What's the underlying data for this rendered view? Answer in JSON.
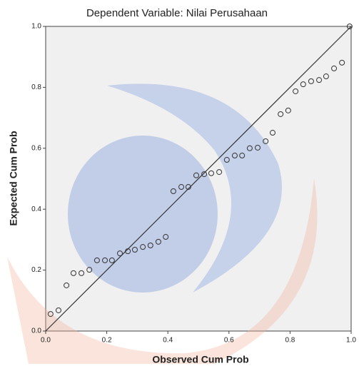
{
  "chart_data": {
    "type": "scatter",
    "title": "Dependent Variable: Nilai Perusahaan",
    "x_label": "Observed Cum Prob",
    "y_label": "Expected Cum Prob",
    "xlim": [
      0,
      1
    ],
    "ylim": [
      0,
      1
    ],
    "xticks": [
      {
        "value": 0,
        "label": "0.0"
      },
      0.2,
      0.4,
      0.6,
      0.8,
      {
        "value": 1,
        "label": "1.0"
      }
    ],
    "yticks": [
      {
        "value": 0,
        "label": "0.0"
      },
      0.2,
      0.4,
      0.6,
      0.8,
      {
        "value": 1,
        "label": "1.0"
      }
    ],
    "color": "#333333",
    "x": [
      0.016,
      0.042,
      0.068,
      0.091,
      0.117,
      0.143,
      0.168,
      0.194,
      0.217,
      0.243,
      0.269,
      0.292,
      0.318,
      0.343,
      0.369,
      0.393,
      0.418,
      0.444,
      0.467,
      0.493,
      0.519,
      0.542,
      0.568,
      0.593,
      0.619,
      0.643,
      0.668,
      0.694,
      0.72,
      0.743,
      0.769,
      0.794,
      0.818,
      0.843,
      0.869,
      0.895,
      0.918,
      0.944,
      0.97,
      0.995
    ],
    "values": [
      0.056,
      0.068,
      0.15,
      0.19,
      0.19,
      0.201,
      0.232,
      0.232,
      0.232,
      0.255,
      0.262,
      0.267,
      0.276,
      0.281,
      0.293,
      0.309,
      0.459,
      0.473,
      0.473,
      0.511,
      0.515,
      0.518,
      0.522,
      0.562,
      0.576,
      0.576,
      0.6,
      0.602,
      0.623,
      0.651,
      0.712,
      0.724,
      0.787,
      0.81,
      0.82,
      0.824,
      0.836,
      0.862,
      0.881,
      1.0
    ]
  }
}
